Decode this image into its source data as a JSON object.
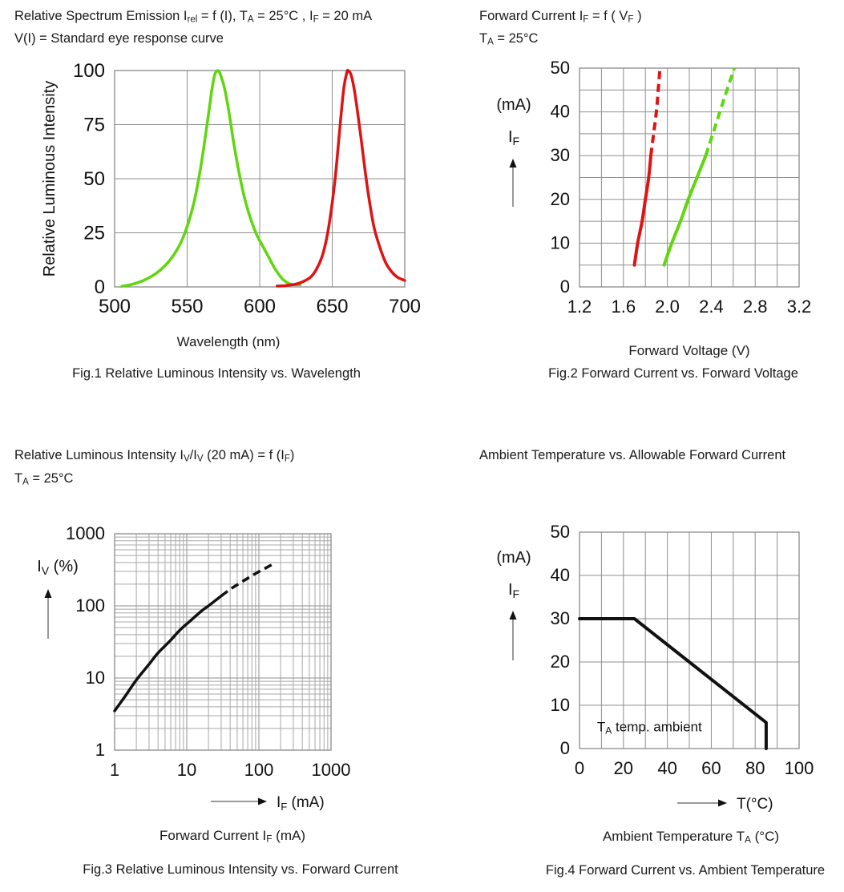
{
  "chart_data": [
    {
      "id": "fig1",
      "type": "line",
      "title_lines": [
        "Relative Spectrum Emission I~rel~ = f (I), T~A~ = 25°C , I~F~ = 20 mA",
        "V(I) = Standard eye response curve"
      ],
      "caption": "Fig.1 Relative Luminous Intensity vs. Wavelength",
      "xlabel": "Wavelength (nm)",
      "x": {
        "min": 500,
        "max": 700,
        "grid": 50,
        "ticks": [
          "500",
          "550",
          "600",
          "650",
          "700"
        ]
      },
      "y": {
        "min": 0,
        "max": 100,
        "grid": 25,
        "ticks": [
          "0",
          "25",
          "50",
          "75",
          "100"
        ],
        "axis_label": "Relative Luminous Intensity"
      },
      "series": [
        {
          "name": "green-emission",
          "color": "#5fd60e",
          "width": 3.5,
          "smooth": true,
          "dashed": false,
          "points": [
            [
              505,
              0.3
            ],
            [
              512,
              1.2
            ],
            [
              520,
              3
            ],
            [
              528,
              6
            ],
            [
              535,
              10
            ],
            [
              541,
              15
            ],
            [
              546,
              21
            ],
            [
              551,
              30
            ],
            [
              555,
              40
            ],
            [
              559,
              54
            ],
            [
              562,
              67
            ],
            [
              565,
              81
            ],
            [
              567,
              91
            ],
            [
              569,
              98
            ],
            [
              571,
              100
            ],
            [
              573,
              98
            ],
            [
              576,
              91
            ],
            [
              579,
              80
            ],
            [
              582,
              67
            ],
            [
              586,
              52
            ],
            [
              590,
              40
            ],
            [
              594,
              31
            ],
            [
              598,
              24
            ],
            [
              602,
              19
            ],
            [
              606,
              14
            ],
            [
              610,
              9
            ],
            [
              613,
              6
            ],
            [
              616,
              3.5
            ],
            [
              619,
              2
            ],
            [
              622,
              1.2
            ],
            [
              625,
              1
            ],
            [
              628,
              1
            ]
          ]
        },
        {
          "name": "red-emission",
          "color": "#e01313",
          "width": 3.5,
          "smooth": true,
          "dashed": false,
          "points": [
            [
              612,
              0.4
            ],
            [
              616,
              0.5
            ],
            [
              620,
              0.8
            ],
            [
              625,
              1.3
            ],
            [
              630,
              2.5
            ],
            [
              635,
              4.5
            ],
            [
              639,
              8
            ],
            [
              643,
              14
            ],
            [
              646,
              22
            ],
            [
              649,
              34
            ],
            [
              652,
              50
            ],
            [
              654,
              64
            ],
            [
              656,
              79
            ],
            [
              658,
              92
            ],
            [
              660,
              99
            ],
            [
              661,
              100
            ],
            [
              663,
              98
            ],
            [
              665,
              92
            ],
            [
              667,
              83
            ],
            [
              670,
              68
            ],
            [
              673,
              52
            ],
            [
              676,
              38
            ],
            [
              679,
              27
            ],
            [
              683,
              18
            ],
            [
              687,
              11
            ],
            [
              691,
              7
            ],
            [
              695,
              4.5
            ],
            [
              700,
              3
            ]
          ]
        }
      ]
    },
    {
      "id": "fig2",
      "type": "line",
      "title_lines": [
        "Forward Current I~F~ = f ( V~F~ )",
        "T~A~ = 25°C"
      ],
      "caption": "Fig.2 Forward Current vs. Forward Voltage",
      "xlabel": "Forward Voltage (V)",
      "side_labels": [
        "(mA)",
        "I~F~"
      ],
      "x": {
        "min": 1.2,
        "max": 3.2,
        "grid": 0.2,
        "ticks": [
          "1.2",
          "1.6",
          "2.0",
          "2.4",
          "2.8",
          "3.2"
        ]
      },
      "y": {
        "min": 0,
        "max": 50,
        "grid": 5,
        "ticks": [
          "0",
          "10",
          "20",
          "30",
          "40",
          "50"
        ]
      },
      "series": [
        {
          "name": "red-led-solid",
          "color": "#e01313",
          "width": 4,
          "smooth": true,
          "dashed": false,
          "points": [
            [
              1.7,
              5
            ],
            [
              1.73,
              10
            ],
            [
              1.77,
              15
            ],
            [
              1.8,
              20
            ],
            [
              1.83,
              25
            ],
            [
              1.85,
              30
            ]
          ]
        },
        {
          "name": "red-led-extrapolated",
          "color": "#e01313",
          "width": 4,
          "smooth": true,
          "dashed": true,
          "points": [
            [
              1.85,
              30
            ],
            [
              1.875,
              35
            ],
            [
              1.9,
              40
            ],
            [
              1.917,
              45
            ],
            [
              1.933,
              50
            ]
          ]
        },
        {
          "name": "green-led-solid",
          "color": "#5fd60e",
          "width": 4,
          "smooth": true,
          "dashed": false,
          "points": [
            [
              1.97,
              5
            ],
            [
              2.04,
              10
            ],
            [
              2.12,
              15
            ],
            [
              2.19,
              20
            ],
            [
              2.27,
              25
            ],
            [
              2.35,
              30
            ]
          ]
        },
        {
          "name": "green-led-extrapolated",
          "color": "#5fd60e",
          "width": 4,
          "smooth": true,
          "dashed": true,
          "points": [
            [
              2.35,
              30
            ],
            [
              2.44,
              37
            ],
            [
              2.53,
              44
            ],
            [
              2.61,
              50
            ]
          ]
        }
      ]
    },
    {
      "id": "fig3",
      "type": "line",
      "title_lines": [
        "Relative Luminous Intensity I~V~/I~V~ (20 mA) = f (I~F~)",
        "T~A~ = 25°C"
      ],
      "caption": "Fig.3 Relative Luminous Intensity vs. Forward Current",
      "xlabel": "Forward Current I~F~ (mA)",
      "x_arrow_label": "I~F~ (mA)",
      "side_labels": [
        "I~V~ (%)"
      ],
      "x": {
        "min": 1,
        "max": 1000,
        "log": true,
        "ticks": [
          "1",
          "10",
          "100",
          "1000"
        ]
      },
      "y": {
        "min": 1,
        "max": 1000,
        "log": true,
        "ticks": [
          "1",
          "10",
          "100",
          "1000"
        ]
      },
      "series": [
        {
          "name": "relative-intensity-solid",
          "color": "#111111",
          "width": 3.5,
          "smooth": true,
          "dashed": false,
          "points": [
            [
              1,
              3.5
            ],
            [
              1.4,
              5.6
            ],
            [
              2,
              9.4
            ],
            [
              3,
              15.5
            ],
            [
              4,
              22.3
            ],
            [
              6,
              33.5
            ],
            [
              8,
              46
            ],
            [
              11,
              61
            ],
            [
              16,
              85
            ],
            [
              20,
              100
            ],
            [
              25,
              119
            ],
            [
              30,
              137
            ]
          ]
        },
        {
          "name": "relative-intensity-extrapolated",
          "color": "#111111",
          "width": 3.5,
          "smooth": true,
          "dashed": true,
          "points": [
            [
              30,
              137
            ],
            [
              40,
              170
            ],
            [
              55,
              208
            ],
            [
              75,
              252
            ],
            [
              100,
              298
            ],
            [
              125,
              335
            ],
            [
              150,
              372
            ]
          ]
        }
      ]
    },
    {
      "id": "fig4",
      "type": "line",
      "title_lines": [
        "Ambient Temperature vs. Allowable Forward Current"
      ],
      "caption": "Fig.4 Forward Current vs. Ambient Temperature",
      "xlabel": "Ambient Temperature T~A~ (°C)",
      "x_arrow_label": "T(°C)",
      "side_labels": [
        "(mA)",
        "I~F~"
      ],
      "annotations": [
        {
          "text": "T~A~ temp. ambient",
          "x": 8,
          "y": 4
        }
      ],
      "x": {
        "min": 0,
        "max": 100,
        "grid": 10,
        "ticks": [
          "0",
          "20",
          "40",
          "60",
          "80",
          "100"
        ]
      },
      "y": {
        "min": 0,
        "max": 50,
        "grid": 10,
        "ticks": [
          "0",
          "10",
          "20",
          "30",
          "40",
          "50"
        ]
      },
      "series": [
        {
          "name": "derating-curve",
          "color": "#111111",
          "width": 4,
          "smooth": false,
          "dashed": false,
          "points": [
            [
              0,
              30
            ],
            [
              25,
              30
            ],
            [
              85,
              6
            ],
            [
              85,
              0
            ]
          ]
        }
      ]
    }
  ]
}
